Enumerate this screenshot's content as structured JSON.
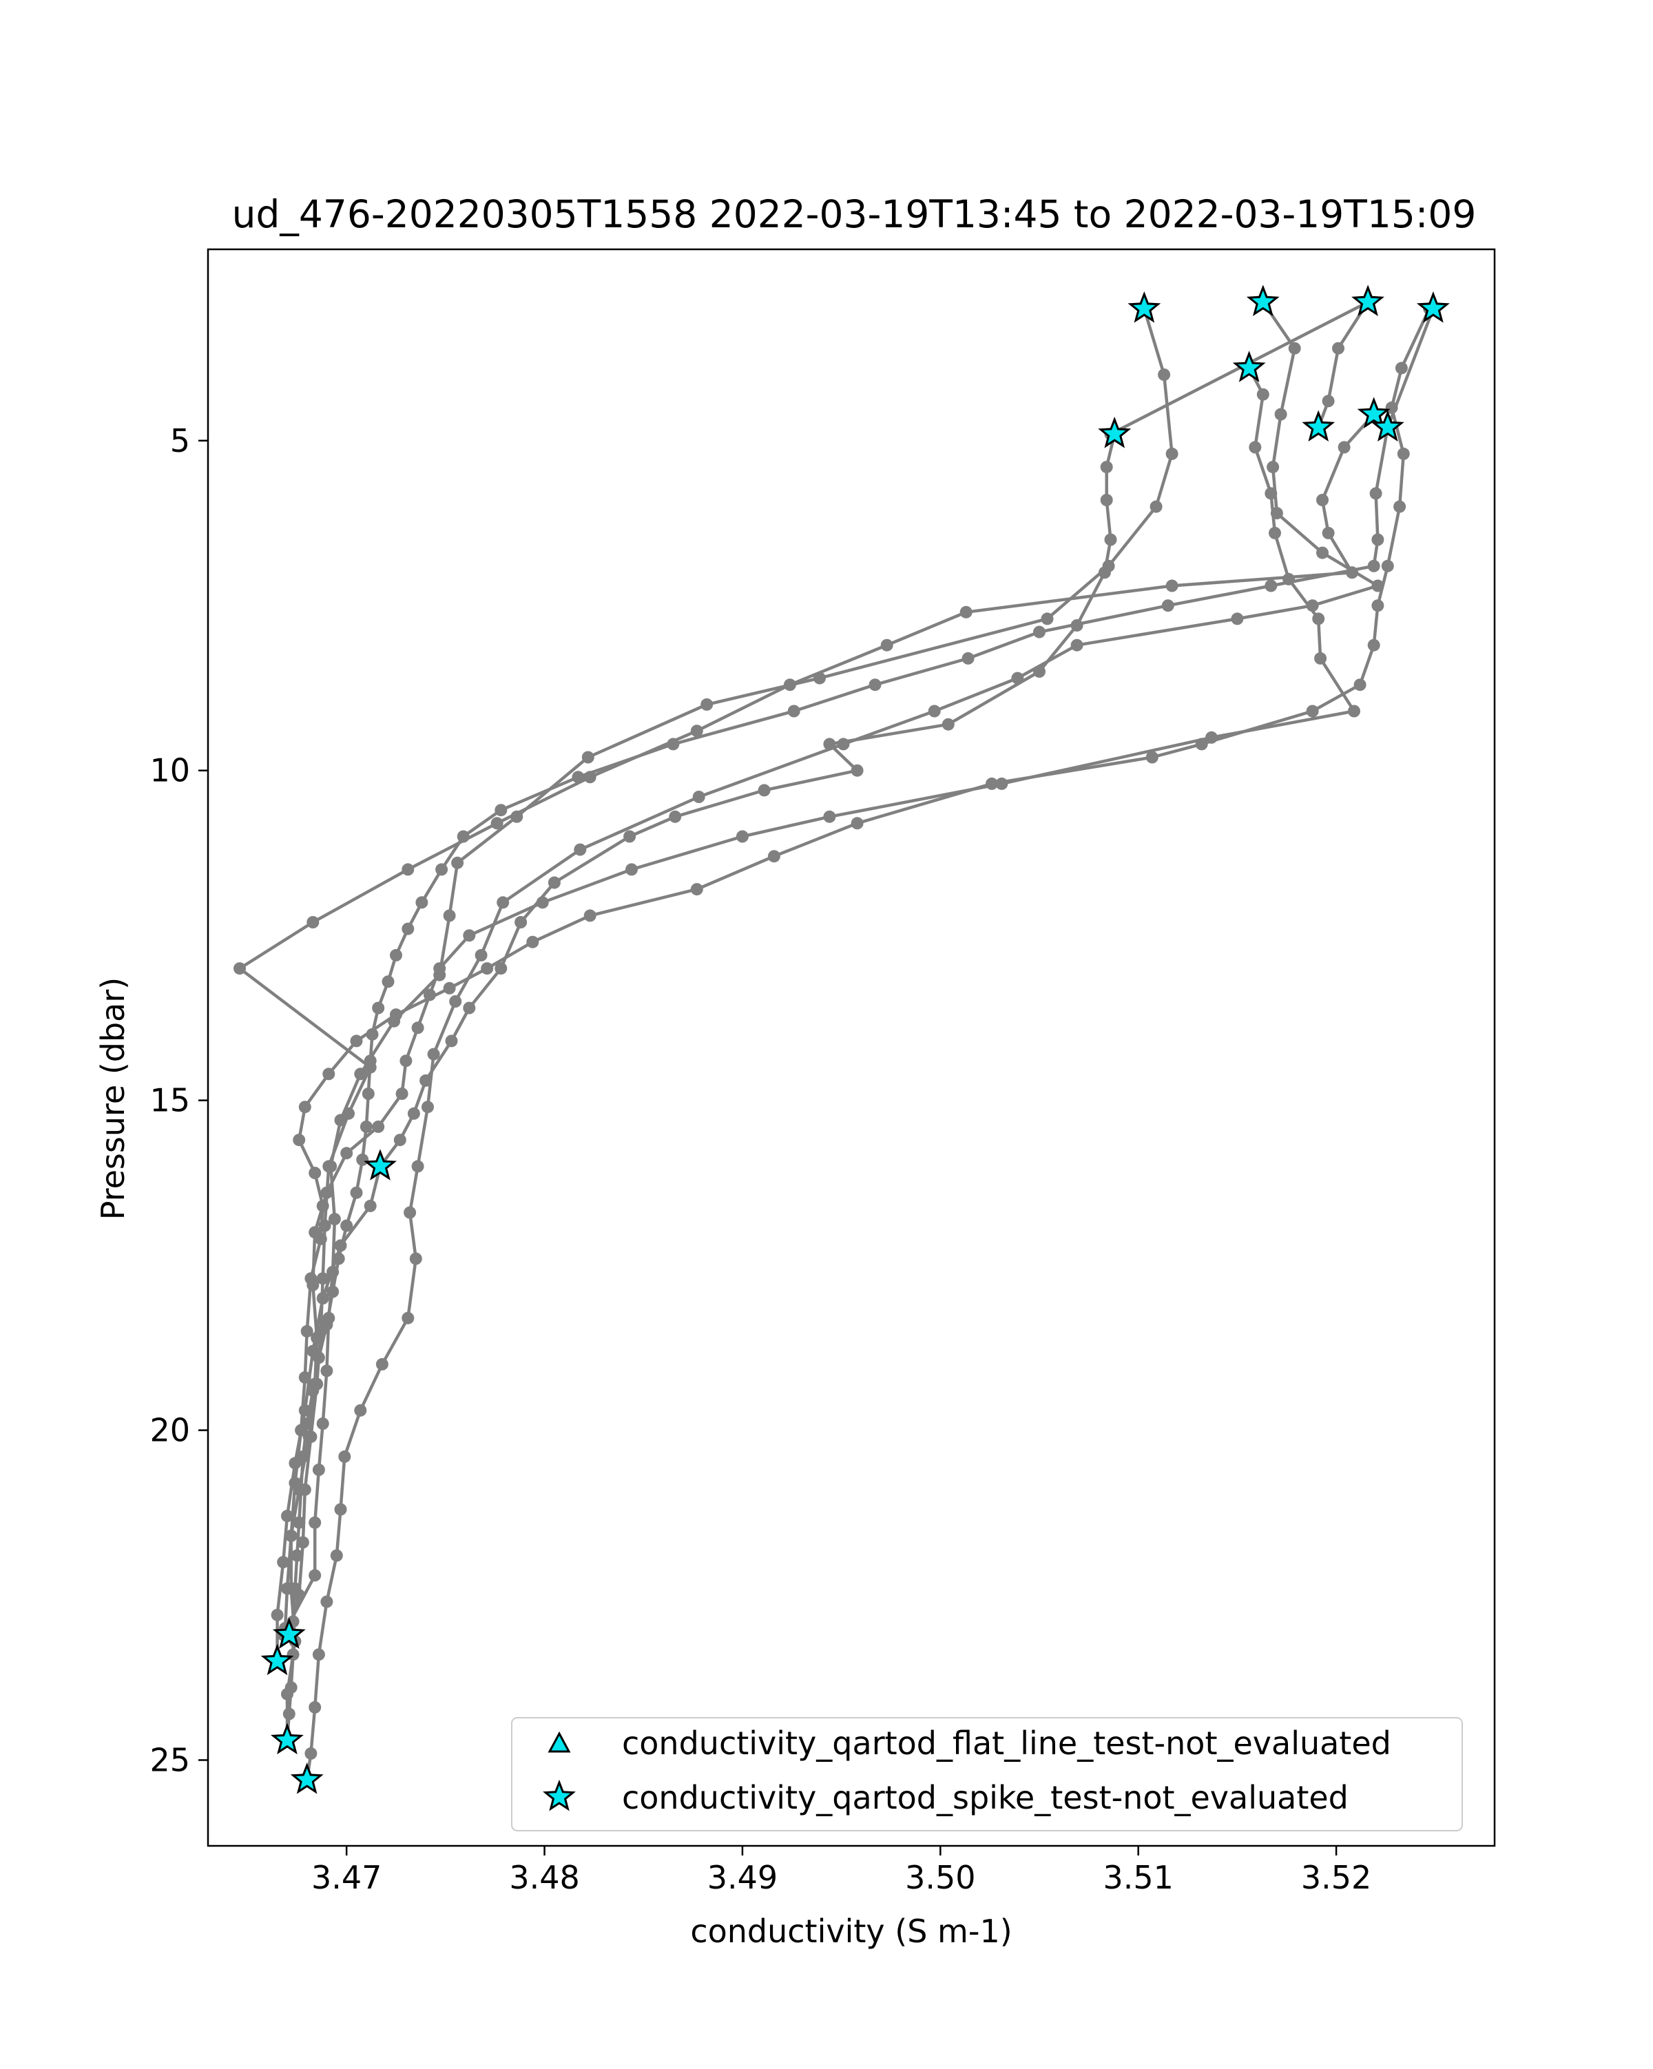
{
  "chart_data": {
    "type": "line",
    "title": "ud_476-20220305T1558 2022-03-19T13:45 to 2022-03-19T15:09",
    "xlabel": "conductivity (S m-1)",
    "ylabel": "Pressure (dbar)",
    "xlim": [
      3.463,
      3.528
    ],
    "ylim": [
      26.3,
      2.1
    ],
    "y_inverted": true,
    "xticks": [
      3.47,
      3.48,
      3.49,
      3.5,
      3.51,
      3.52
    ],
    "xtick_labels": [
      "3.47",
      "3.48",
      "3.49",
      "3.50",
      "3.51",
      "3.52"
    ],
    "yticks": [
      5,
      10,
      15,
      20,
      25
    ],
    "ytick_labels": [
      "5",
      "10",
      "15",
      "20",
      "25"
    ],
    "grid": false,
    "legend_position": "lower-right",
    "line_color": "#808080",
    "marker_color": "#808080",
    "flag_color": "#00e5ee",
    "legend": [
      {
        "label": "conductivity_qartod_flat_line_test-not_evaluated",
        "marker": "triangle"
      },
      {
        "label": "conductivity_qartod_spike_test-not_evaluated",
        "marker": "star"
      }
    ],
    "series": [
      {
        "points": [
          [
            3.5103,
            3.0
          ],
          [
            3.5113,
            4.0
          ],
          [
            3.5117,
            5.2
          ],
          [
            3.5109,
            6.0
          ],
          [
            3.5085,
            6.9
          ],
          [
            3.5054,
            7.7
          ],
          [
            3.4939,
            8.6
          ],
          [
            3.4882,
            9.0
          ],
          [
            3.4822,
            9.8
          ],
          [
            3.4786,
            10.7
          ],
          [
            3.4756,
            11.4
          ],
          [
            3.4752,
            12.2
          ],
          [
            3.4747,
            13.1
          ],
          [
            3.4724,
            13.8
          ],
          [
            3.4707,
            14.6
          ],
          [
            3.4697,
            15.3
          ],
          [
            3.4692,
            16.0
          ],
          [
            3.4694,
            16.8
          ],
          [
            3.4693,
            17.6
          ],
          [
            3.4691,
            18.3
          ],
          [
            3.469,
            19.1
          ],
          [
            3.4688,
            19.9
          ],
          [
            3.4686,
            20.6
          ],
          [
            3.4684,
            21.4
          ],
          [
            3.4684,
            22.2
          ],
          [
            3.4668,
            23.1
          ]
        ]
      },
      {
        "points": [
          [
            3.5088,
            4.9
          ],
          [
            3.5084,
            5.4
          ],
          [
            3.5084,
            5.9
          ],
          [
            3.5086,
            6.5
          ],
          [
            3.5083,
            7.0
          ],
          [
            3.5069,
            7.8
          ],
          [
            3.505,
            8.5
          ],
          [
            3.5004,
            9.3
          ],
          [
            3.4944,
            9.6
          ],
          [
            3.4958,
            10.0
          ],
          [
            3.4911,
            10.3
          ],
          [
            3.4866,
            10.7
          ],
          [
            3.4843,
            11.0
          ],
          [
            3.4805,
            11.7
          ],
          [
            3.4788,
            12.3
          ],
          [
            3.4778,
            13.0
          ],
          [
            3.4762,
            13.6
          ],
          [
            3.4753,
            14.1
          ],
          [
            3.474,
            14.7
          ],
          [
            3.4734,
            15.2
          ],
          [
            3.4727,
            15.6
          ],
          [
            3.4717,
            16.0
          ],
          [
            3.4712,
            16.6
          ],
          [
            3.4697,
            17.2
          ],
          [
            3.4688,
            18.0
          ],
          [
            3.4683,
            18.8
          ],
          [
            3.4679,
            19.7
          ],
          [
            3.4674,
            20.5
          ],
          [
            3.467,
            21.3
          ],
          [
            3.4668,
            22.0
          ],
          [
            3.4665,
            22.8
          ],
          [
            3.4665,
            23.5
          ]
        ]
      },
      {
        "points": [
          [
            3.5156,
            3.9
          ],
          [
            3.5163,
            4.3
          ],
          [
            3.5159,
            5.1
          ],
          [
            3.5167,
            5.8
          ],
          [
            3.5169,
            6.4
          ],
          [
            3.5176,
            7.1
          ],
          [
            3.5191,
            7.7
          ],
          [
            3.5192,
            8.3
          ],
          [
            3.5209,
            9.1
          ],
          [
            3.5137,
            9.5
          ],
          [
            3.5031,
            10.2
          ],
          [
            3.4944,
            10.7
          ],
          [
            3.49,
            11.0
          ],
          [
            3.4844,
            11.5
          ],
          [
            3.4799,
            12.0
          ],
          [
            3.4762,
            12.5
          ],
          [
            3.4747,
            13.0
          ],
          [
            3.4742,
            13.4
          ],
          [
            3.4736,
            13.9
          ],
          [
            3.473,
            14.4
          ],
          [
            3.4728,
            14.9
          ],
          [
            3.4716,
            15.4
          ],
          [
            3.47,
            15.8
          ],
          [
            3.469,
            16.4
          ],
          [
            3.4684,
            17.0
          ],
          [
            3.4683,
            17.8
          ],
          [
            3.4685,
            18.6
          ],
          [
            3.4684,
            19.3
          ],
          [
            3.4681,
            20.1
          ],
          [
            3.4676,
            20.9
          ],
          [
            3.4672,
            21.6
          ],
          [
            3.4672,
            22.4
          ],
          [
            3.4674,
            23.2
          ],
          [
            3.467,
            24.0
          ],
          [
            3.467,
            24.7
          ]
        ]
      },
      {
        "points": [
          [
            3.5163,
            2.9
          ],
          [
            3.5179,
            3.6
          ],
          [
            3.5172,
            4.6
          ],
          [
            3.5168,
            5.4
          ],
          [
            3.517,
            6.1
          ],
          [
            3.5193,
            6.7
          ],
          [
            3.5221,
            7.2
          ],
          [
            3.5188,
            7.5
          ],
          [
            3.515,
            7.7
          ],
          [
            3.5069,
            8.1
          ],
          [
            3.5039,
            8.6
          ],
          [
            3.4997,
            9.1
          ],
          [
            3.4951,
            9.6
          ],
          [
            3.4878,
            10.4
          ],
          [
            3.4818,
            11.2
          ],
          [
            3.4779,
            12.0
          ],
          [
            3.4768,
            12.8
          ],
          [
            3.4755,
            13.5
          ],
          [
            3.4744,
            14.3
          ],
          [
            3.4741,
            15.1
          ],
          [
            3.4736,
            16.0
          ],
          [
            3.4732,
            16.7
          ],
          [
            3.4735,
            17.4
          ],
          [
            3.4731,
            18.3
          ],
          [
            3.4718,
            19.0
          ],
          [
            3.4707,
            19.7
          ],
          [
            3.4699,
            20.4
          ],
          [
            3.4697,
            21.2
          ],
          [
            3.4695,
            21.9
          ],
          [
            3.469,
            22.6
          ],
          [
            3.4686,
            23.4
          ],
          [
            3.4684,
            24.2
          ],
          [
            3.4682,
            24.9
          ],
          [
            3.468,
            25.3
          ]
        ]
      },
      {
        "points": [
          [
            3.5216,
            2.9
          ],
          [
            3.5086,
            4.9
          ]
        ]
      },
      {
        "points": [
          [
            3.5219,
            4.6
          ],
          [
            3.5204,
            5.1
          ],
          [
            3.5193,
            5.9
          ],
          [
            3.5196,
            6.4
          ],
          [
            3.5208,
            7.0
          ],
          [
            3.5117,
            7.2
          ],
          [
            3.5013,
            7.6
          ],
          [
            3.4973,
            8.1
          ],
          [
            3.4924,
            8.7
          ],
          [
            3.4877,
            9.4
          ],
          [
            3.4823,
            10.1
          ],
          [
            3.4776,
            10.8
          ],
          [
            3.4731,
            11.5
          ],
          [
            3.4683,
            12.3
          ],
          [
            3.4646,
            13.0
          ],
          [
            3.4712,
            14.5
          ],
          [
            3.4701,
            15.2
          ],
          [
            3.4691,
            16.0
          ],
          [
            3.4689,
            16.9
          ],
          [
            3.4688,
            17.7
          ],
          [
            3.4687,
            18.5
          ],
          [
            3.4685,
            19.3
          ],
          [
            3.4682,
            20.1
          ],
          [
            3.4679,
            20.9
          ],
          [
            3.4678,
            21.7
          ],
          [
            3.4676,
            22.5
          ],
          [
            3.4671,
            23.1
          ]
        ]
      },
      {
        "points": [
          [
            3.5247,
            3.0
          ],
          [
            3.5233,
            3.9
          ],
          [
            3.5228,
            4.5
          ],
          [
            3.5234,
            5.2
          ],
          [
            3.5232,
            6.0
          ],
          [
            3.5226,
            6.9
          ],
          [
            3.5221,
            7.5
          ],
          [
            3.5219,
            8.1
          ],
          [
            3.5212,
            8.7
          ],
          [
            3.5188,
            9.1
          ],
          [
            3.5132,
            9.6
          ],
          [
            3.5107,
            9.8
          ],
          [
            3.5026,
            10.2
          ],
          [
            3.4958,
            10.8
          ],
          [
            3.4916,
            11.3
          ],
          [
            3.4877,
            11.8
          ],
          [
            3.4823,
            12.2
          ],
          [
            3.4794,
            12.6
          ],
          [
            3.4771,
            13.0
          ],
          [
            3.4752,
            13.3
          ],
          [
            3.4725,
            13.7
          ],
          [
            3.4705,
            14.1
          ],
          [
            3.4691,
            14.6
          ],
          [
            3.4679,
            15.1
          ],
          [
            3.4676,
            15.6
          ],
          [
            3.4684,
            16.1
          ],
          [
            3.4688,
            16.6
          ],
          [
            3.4687,
            17.1
          ],
          [
            3.4682,
            17.7
          ],
          [
            3.468,
            18.5
          ],
          [
            3.4679,
            19.2
          ],
          [
            3.4677,
            20.0
          ],
          [
            3.4674,
            20.8
          ],
          [
            3.4672,
            21.6
          ],
          [
            3.467,
            22.4
          ],
          [
            3.4669,
            23.0
          ]
        ]
      },
      {
        "points": [
          [
            3.5249,
            3.0
          ],
          [
            3.5226,
            4.8
          ],
          [
            3.522,
            5.8
          ],
          [
            3.5221,
            6.5
          ],
          [
            3.5219,
            6.9
          ],
          [
            3.5167,
            7.2
          ],
          [
            3.5115,
            7.5
          ],
          [
            3.505,
            7.9
          ],
          [
            3.5014,
            8.3
          ],
          [
            3.4967,
            8.7
          ],
          [
            3.4926,
            9.1
          ],
          [
            3.4865,
            9.6
          ],
          [
            3.4817,
            10.1
          ],
          [
            3.4778,
            10.6
          ],
          [
            3.4759,
            11.0
          ],
          [
            3.4748,
            11.5
          ],
          [
            3.4738,
            12.0
          ],
          [
            3.4731,
            12.4
          ],
          [
            3.4725,
            12.8
          ],
          [
            3.4721,
            13.2
          ],
          [
            3.4716,
            13.6
          ],
          [
            3.4713,
            14.0
          ],
          [
            3.4712,
            14.4
          ],
          [
            3.4711,
            14.9
          ],
          [
            3.471,
            15.4
          ],
          [
            3.4708,
            15.9
          ],
          [
            3.4705,
            16.4
          ],
          [
            3.47,
            16.9
          ],
          [
            3.4696,
            17.4
          ],
          [
            3.4693,
            17.9
          ],
          [
            3.469,
            18.4
          ],
          [
            3.4686,
            18.9
          ],
          [
            3.4683,
            19.4
          ],
          [
            3.468,
            19.9
          ],
          [
            3.4678,
            20.4
          ],
          [
            3.4677,
            20.9
          ],
          [
            3.4676,
            21.4
          ],
          [
            3.4675,
            21.9
          ],
          [
            3.4674,
            22.4
          ],
          [
            3.4673,
            22.9
          ],
          [
            3.4673,
            23.4
          ],
          [
            3.4672,
            23.9
          ],
          [
            3.4671,
            24.3
          ],
          [
            3.467,
            24.7
          ]
        ]
      },
      {
        "points": [
          [
            3.5191,
            4.8
          ],
          [
            3.5196,
            4.4
          ],
          [
            3.5201,
            3.6
          ],
          [
            3.5216,
            2.9
          ]
        ]
      }
    ],
    "flags": [
      {
        "x": 3.5103,
        "y": 3.0,
        "flag": "spike_test-not_evaluated"
      },
      {
        "x": 3.5163,
        "y": 2.9,
        "flag": "spike_test-not_evaluated"
      },
      {
        "x": 3.5216,
        "y": 2.9,
        "flag": "spike_test-not_evaluated"
      },
      {
        "x": 3.5249,
        "y": 3.0,
        "flag": "spike_test-not_evaluated"
      },
      {
        "x": 3.5156,
        "y": 3.9,
        "flag": "spike_test-not_evaluated"
      },
      {
        "x": 3.5088,
        "y": 4.9,
        "flag": "spike_test-not_evaluated"
      },
      {
        "x": 3.5191,
        "y": 4.8,
        "flag": "spike_test-not_evaluated"
      },
      {
        "x": 3.5219,
        "y": 4.6,
        "flag": "spike_test-not_evaluated"
      },
      {
        "x": 3.5226,
        "y": 4.8,
        "flag": "spike_test-not_evaluated"
      },
      {
        "x": 3.4717,
        "y": 16.0,
        "flag": "spike_test-not_evaluated"
      },
      {
        "x": 3.4671,
        "y": 23.1,
        "flag": "spike_test-not_evaluated"
      },
      {
        "x": 3.4665,
        "y": 23.5,
        "flag": "spike_test-not_evaluated"
      },
      {
        "x": 3.467,
        "y": 24.7,
        "flag": "spike_test-not_evaluated"
      },
      {
        "x": 3.468,
        "y": 25.3,
        "flag": "spike_test-not_evaluated"
      }
    ]
  }
}
